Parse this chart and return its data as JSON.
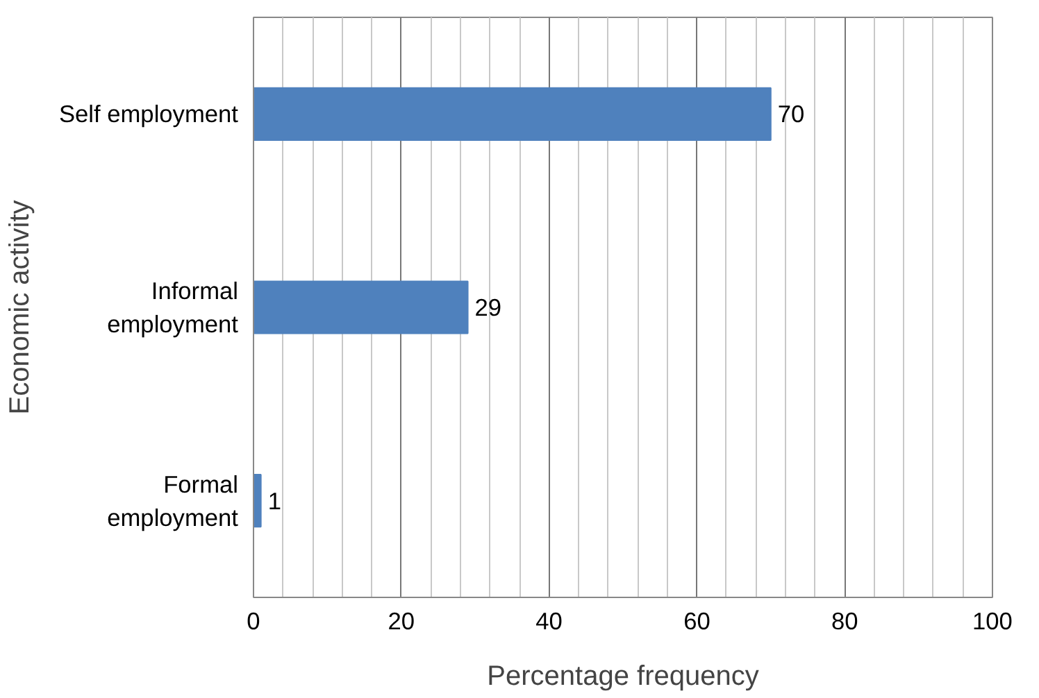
{
  "chart_data": {
    "type": "bar",
    "orientation": "horizontal",
    "categories": [
      "Self employment",
      "Informal employment",
      "Formal employment"
    ],
    "values": [
      70,
      29,
      1
    ],
    "color": "#4f81bd",
    "xlim": [
      0,
      100
    ],
    "xticks": [
      0,
      20,
      40,
      60,
      80,
      100
    ],
    "xlabel": "Percentage frequency",
    "ylabel": "Economic activity",
    "data_labels": true,
    "grid": "x"
  }
}
